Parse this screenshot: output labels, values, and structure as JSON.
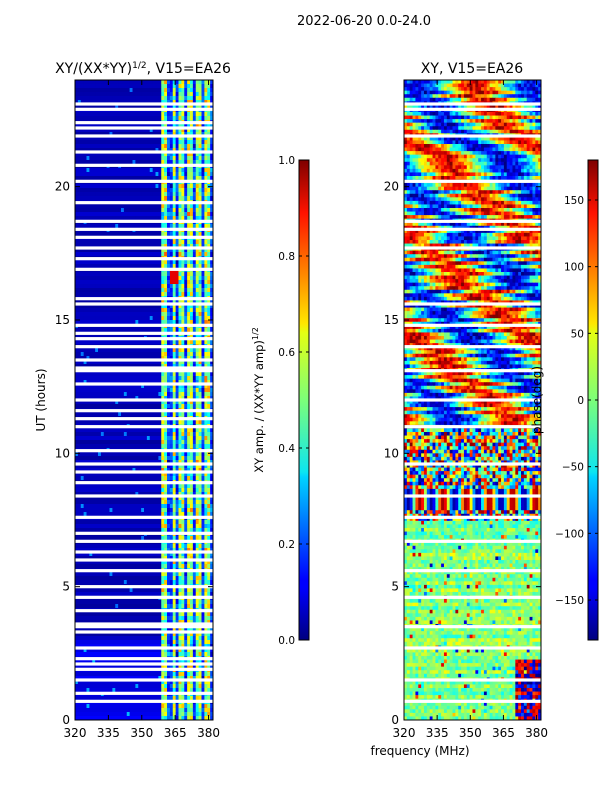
{
  "suptitle": "2022-06-20 0.0-24.0",
  "chart_data": [
    {
      "type": "heatmap",
      "title": "XY/(XX*YY)1/2, V15=EA26",
      "title_main": "XY/(XX*YY)",
      "title_sup": "1/2",
      "title_tail": ", V15=EA26",
      "xlabel": "",
      "ylabel": "UT (hours)",
      "xlim": [
        320,
        382
      ],
      "ylim": [
        0,
        24
      ],
      "xticks": [
        320,
        335,
        350,
        365,
        380
      ],
      "yticks": [
        0,
        5,
        10,
        15,
        20
      ],
      "colorbar": {
        "label": "XY amp. / (XX*YY amp)1/2",
        "label_main": "XY amp. / (XX*YY amp)",
        "label_sup": "1/2",
        "range": [
          0.0,
          1.0
        ],
        "ticks": [
          0.0,
          0.2,
          0.4,
          0.6,
          0.8,
          1.0
        ],
        "tick_labels": [
          "0.0",
          "0.2",
          "0.4",
          "0.6",
          "0.8",
          "1.0"
        ]
      },
      "flagged_ut_hours": [
        0.7,
        1.0,
        1.5,
        1.9,
        2.1,
        2.3,
        2.7,
        3.3,
        3.5,
        3.6,
        4.1,
        4.6,
        5.0,
        5.6,
        6.0,
        6.3,
        6.7,
        7.0,
        7.6,
        8.4,
        8.9,
        9.3,
        9.6,
        10.1,
        11.0,
        11.3,
        11.6,
        12.0,
        12.6,
        13.1,
        13.2,
        13.5,
        14.0,
        14.3,
        14.5,
        14.8,
        15.6,
        15.8,
        16.9,
        17.3,
        17.7,
        18.1,
        18.4,
        18.7,
        19.4,
        20.2,
        20.8,
        21.3,
        21.9,
        22.2,
        22.4,
        22.9,
        23.1
      ],
      "notes": "Low normalized amplitude (~0.0-0.1) below ~359 MHz; striped higher values (~0.2-0.7) between ~359 and 380 MHz."
    },
    {
      "type": "heatmap",
      "title": "XY, V15=EA26",
      "xlabel": "frequency (MHz)",
      "ylabel": "",
      "xlim": [
        320,
        382
      ],
      "ylim": [
        0,
        24
      ],
      "xticks": [
        320,
        335,
        350,
        365,
        380
      ],
      "yticks": [
        0,
        5,
        10,
        15,
        20
      ],
      "colorbar": {
        "label": "phase(deg)",
        "range": [
          -180,
          180
        ],
        "ticks": [
          -150,
          -100,
          -50,
          0,
          50,
          100,
          150
        ],
        "tick_labels": [
          "−150",
          "−100",
          "−50",
          "0",
          "50",
          "100",
          "150"
        ]
      },
      "flagged_ut_hours": [
        0.7,
        1.5,
        2.7,
        3.5,
        4.6,
        5.6,
        6.7,
        7.6,
        8.4,
        9.6,
        11.0,
        12.0,
        13.1,
        14.0,
        14.8,
        15.6,
        17.7,
        18.4,
        18.7,
        20.2,
        21.9,
        22.9,
        23.1
      ],
      "notes": "Phase mostly near 0 (cyan/green) below ~7.5 UT; noisy full-range phases between ~7.5 and ~11 UT; large patchy structure above ~11 UT."
    }
  ]
}
